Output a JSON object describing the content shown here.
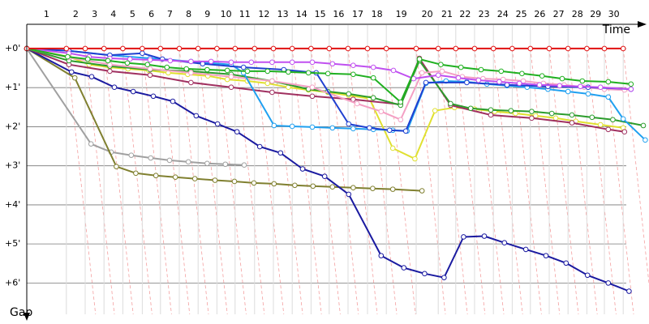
{
  "chart_data": {
    "type": "line",
    "x_label": "Time",
    "y_label": "Gap",
    "categories": [
      "1",
      "2",
      "3",
      "4",
      "5",
      "6",
      "7",
      "8",
      "9",
      "10",
      "11",
      "12",
      "13",
      "14",
      "15",
      "16",
      "17",
      "18",
      "19",
      "20",
      "21",
      "22",
      "23",
      "24",
      "25",
      "26",
      "27",
      "28",
      "29",
      "30"
    ],
    "xlim": [
      0,
      96
    ],
    "ylim": [
      -0.6,
      6.8
    ],
    "yticks": [
      {
        "value": 0,
        "label": "+0'"
      },
      {
        "value": 1,
        "label": "+1'"
      },
      {
        "value": 2,
        "label": "+2'"
      },
      {
        "value": 3,
        "label": "+3'"
      },
      {
        "value": 4,
        "label": "+4'"
      },
      {
        "value": 5,
        "label": "+5'"
      },
      {
        "value": 6,
        "label": "+6'"
      }
    ],
    "grid": true,
    "series": [
      {
        "color": "#a0a0a0",
        "x": [
          0,
          9.9,
          13,
          16.1,
          19.1,
          22,
          24.9,
          27.8,
          30.6,
          33.5
        ],
        "values": [
          0,
          2.44,
          2.65,
          2.73,
          2.8,
          2.86,
          2.9,
          2.94,
          2.96,
          2.98
        ]
      },
      {
        "color": "#808030",
        "x": [
          0,
          7.4,
          13.8,
          16.8,
          19.9,
          22.9,
          25.9,
          29,
          32,
          35,
          38.1,
          41.3,
          44.1,
          47.1,
          50.3,
          53.3,
          56.4,
          60.9
        ],
        "values": [
          0,
          0.75,
          3.02,
          3.19,
          3.25,
          3.29,
          3.33,
          3.37,
          3.4,
          3.44,
          3.46,
          3.5,
          3.52,
          3.54,
          3.56,
          3.58,
          3.6,
          3.64
        ]
      },
      {
        "color": "#1a1aa0",
        "x": [
          0,
          6.9,
          10,
          13.5,
          16.4,
          19.5,
          22.5,
          26.1,
          29.4,
          32.4,
          35.9,
          39.1,
          42.5,
          45.9,
          49.6,
          54.6,
          58.1,
          61.3,
          64.3,
          67.3,
          70.5,
          73.6,
          76.9,
          80,
          83.1,
          86.4,
          89.6,
          92.8
        ],
        "values": [
          0,
          0.6,
          0.72,
          0.99,
          1.1,
          1.22,
          1.35,
          1.72,
          1.93,
          2.13,
          2.51,
          2.67,
          3.08,
          3.27,
          3.73,
          5.3,
          5.61,
          5.76,
          5.86,
          4.82,
          4.8,
          4.97,
          5.14,
          5.3,
          5.49,
          5.8,
          6,
          6.21
        ]
      },
      {
        "color": "#e0e030",
        "x": [
          0,
          6.5,
          9.6,
          12.8,
          15.6,
          18.8,
          21.8,
          24.8,
          27.9,
          30.9,
          34,
          37.1,
          40.3,
          43.4,
          46.4,
          49.6,
          52.8,
          56.4,
          59.8,
          62.9,
          65.9,
          69,
          72.1,
          75.3,
          78.4,
          81.5,
          84.6,
          88.4,
          91.9
        ],
        "values": [
          0,
          0.21,
          0.41,
          0.48,
          0.52,
          0.56,
          0.62,
          0.66,
          0.7,
          0.79,
          0.83,
          0.89,
          0.99,
          1.06,
          1.12,
          1.2,
          1.28,
          2.55,
          2.82,
          1.59,
          1.51,
          1.55,
          1.61,
          1.66,
          1.72,
          1.78,
          1.86,
          1.95,
          2.03
        ]
      },
      {
        "color": "#a03060",
        "x": [
          0,
          6.5,
          12.8,
          19,
          25.3,
          31.5,
          37.8,
          44,
          50.3,
          57.6,
          60.5,
          65.3,
          71.5,
          77.8,
          84,
          89.6,
          92.1
        ],
        "values": [
          0,
          0.41,
          0.58,
          0.68,
          0.87,
          0.99,
          1.12,
          1.22,
          1.3,
          1.43,
          0.25,
          1.45,
          1.7,
          1.78,
          1.9,
          2.07,
          2.13
        ]
      },
      {
        "color": "#2c9c2c",
        "x": [
          0,
          6.5,
          12.8,
          19,
          25.3,
          31.5,
          37.8,
          43.4,
          46.4,
          49.6,
          53.4,
          57.6,
          60.5,
          65.3,
          68.4,
          71.5,
          74.6,
          77.8,
          80.9,
          84,
          87.1,
          90.3,
          95
        ],
        "values": [
          0,
          0.31,
          0.45,
          0.54,
          0.58,
          0.66,
          0.83,
          1.04,
          1.1,
          1.16,
          1.26,
          1.45,
          0.31,
          1.41,
          1.53,
          1.57,
          1.59,
          1.61,
          1.66,
          1.7,
          1.76,
          1.82,
          1.97
        ]
      },
      {
        "color": "#f4a0c4",
        "x": [
          0,
          6.5,
          12.8,
          19,
          25.3,
          31.5,
          37.8,
          44,
          50.9,
          54.6,
          57.6,
          60.9,
          64,
          67.1,
          70.3,
          73.4,
          76.5,
          79.6,
          82.8,
          85.9,
          89,
          92.1
        ],
        "values": [
          0,
          0.23,
          0.41,
          0.52,
          0.62,
          0.72,
          0.83,
          0.99,
          1.41,
          1.61,
          1.82,
          0.62,
          0.58,
          0.72,
          0.77,
          0.79,
          0.83,
          0.89,
          0.93,
          0.99,
          1.04,
          1.06
        ]
      },
      {
        "color": "#20a0f0",
        "x": [
          0,
          6.5,
          12.8,
          19,
          25.3,
          31.5,
          33.4,
          38.1,
          40.9,
          44,
          47.1,
          50.3,
          53.4,
          56.4,
          58.6,
          61.5,
          64.6,
          67.8,
          70.9,
          74,
          77.1,
          80.3,
          83.4,
          86.5,
          89.6,
          91.9,
          95.3
        ],
        "values": [
          0,
          0.06,
          0.17,
          0.25,
          0.33,
          0.41,
          0.62,
          1.97,
          1.99,
          2.01,
          2.03,
          2.05,
          2.07,
          2.09,
          2.11,
          0.89,
          0.83,
          0.85,
          0.91,
          0.95,
          0.99,
          1.04,
          1.1,
          1.16,
          1.24,
          1.8,
          2.34
        ]
      },
      {
        "color": "#2040d0",
        "x": [
          0,
          6.5,
          12.8,
          17.8,
          20.9,
          27.1,
          33.4,
          39.6,
          44.6,
          49.6,
          52.8,
          55.9,
          58.4,
          61.5,
          67.8,
          74,
          80.3,
          86.5,
          93.1
        ],
        "values": [
          0,
          0.06,
          0.17,
          0.12,
          0.27,
          0.39,
          0.48,
          0.54,
          0.62,
          1.93,
          2.03,
          2.09,
          2.11,
          0.87,
          0.87,
          0.93,
          0.97,
          0.99,
          1.04
        ]
      },
      {
        "color": "#c050f0",
        "x": [
          0,
          6.5,
          9.6,
          12.8,
          15.9,
          19,
          22.1,
          25.3,
          28.4,
          31.5,
          34.6,
          37.8,
          40.9,
          44,
          47.1,
          50.3,
          53.4,
          56.5,
          59.6,
          63.4,
          66.5,
          69.6,
          72.8,
          75.9,
          79,
          82.1,
          85.3,
          88.4,
          93.1
        ],
        "values": [
          0,
          0.12,
          0.21,
          0.25,
          0.27,
          0.29,
          0.31,
          0.33,
          0.33,
          0.35,
          0.35,
          0.35,
          0.35,
          0.35,
          0.39,
          0.43,
          0.48,
          0.56,
          0.77,
          0.68,
          0.75,
          0.81,
          0.85,
          0.89,
          0.93,
          0.95,
          0.97,
          0.99,
          1.04
        ]
      },
      {
        "color": "#20b020",
        "x": [
          0,
          6.3,
          9.4,
          12.5,
          15.5,
          18.6,
          21.6,
          24.6,
          27.8,
          30.9,
          34,
          37.1,
          40.3,
          43.4,
          46.4,
          50.3,
          53.4,
          57.6,
          60.5,
          63.8,
          66.9,
          70,
          73.1,
          76.3,
          79.4,
          82.5,
          85.6,
          89.6,
          93.1
        ],
        "values": [
          0,
          0.21,
          0.27,
          0.31,
          0.37,
          0.41,
          0.48,
          0.52,
          0.54,
          0.56,
          0.58,
          0.58,
          0.6,
          0.62,
          0.64,
          0.66,
          0.75,
          1.37,
          0.27,
          0.41,
          0.48,
          0.54,
          0.58,
          0.64,
          0.7,
          0.77,
          0.83,
          0.85,
          0.91
        ]
      },
      {
        "color": "#e01010",
        "x": [
          0,
          6.1,
          9,
          11.9,
          14.8,
          17.8,
          20.6,
          23.5,
          26.4,
          29.3,
          32.1,
          35.1,
          38,
          40.9,
          43.8,
          46.6,
          49.5,
          52.5,
          55.4,
          60,
          63.4,
          66.1,
          69,
          71.9,
          74.8,
          77.6,
          80.5,
          83.4,
          86.3,
          89,
          91.9
        ],
        "values": [
          0,
          0,
          0,
          0,
          0,
          0,
          0,
          0,
          0,
          0,
          0,
          0,
          0,
          0,
          0,
          0,
          0,
          0,
          0,
          0,
          0,
          0,
          0,
          0,
          0,
          0,
          0,
          0,
          0,
          0,
          0
        ]
      }
    ]
  }
}
